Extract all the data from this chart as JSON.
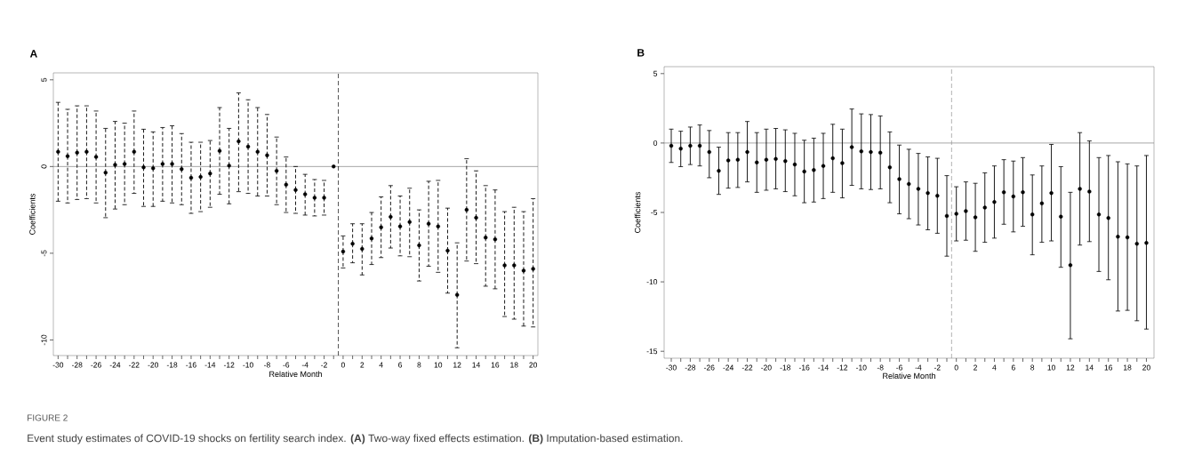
{
  "chart_data": [
    {
      "type": "scatter",
      "title": "A",
      "xlabel": "Relative Month",
      "ylabel": "Coefficients",
      "x": [
        -30,
        -29,
        -28,
        -27,
        -26,
        -25,
        -24,
        -23,
        -22,
        -21,
        -20,
        -19,
        -18,
        -17,
        -16,
        -15,
        -14,
        -13,
        -12,
        -11,
        -10,
        -9,
        -8,
        -7,
        -6,
        -5,
        -4,
        -3,
        -2,
        -1,
        0,
        1,
        2,
        3,
        4,
        5,
        6,
        7,
        8,
        9,
        10,
        11,
        12,
        13,
        14,
        15,
        16,
        17,
        18,
        19,
        20
      ],
      "marker": "circle",
      "line_style": "dashed",
      "series": [
        {
          "color": "#000000",
          "values": [
            0.85,
            0.6,
            0.8,
            0.85,
            0.55,
            -0.35,
            0.1,
            0.15,
            0.85,
            -0.05,
            -0.1,
            0.15,
            0.15,
            -0.15,
            -0.65,
            -0.6,
            -0.4,
            0.9,
            0.05,
            1.45,
            1.15,
            0.85,
            0.65,
            -0.25,
            -1.05,
            -1.35,
            -1.6,
            -1.8,
            -1.8,
            0,
            -4.9,
            -4.45,
            -4.75,
            -4.15,
            -3.5,
            -2.9,
            -3.45,
            -3.2,
            -4.55,
            -3.3,
            -3.45,
            -4.85,
            -7.4,
            -2.5,
            -2.95,
            -4.1,
            -4.2,
            -5.7,
            -5.7,
            -6.0,
            -5.9
          ],
          "errors": [
            [
              -2.0,
              3.7
            ],
            [
              -2.1,
              3.3
            ],
            [
              -1.9,
              3.5
            ],
            [
              -1.85,
              3.5
            ],
            [
              -2.1,
              3.2
            ],
            [
              -2.95,
              2.2
            ],
            [
              -2.45,
              2.6
            ],
            [
              -2.2,
              2.5
            ],
            [
              -1.55,
              3.2
            ],
            [
              -2.3,
              2.15
            ],
            [
              -2.3,
              2.0
            ],
            [
              -2.0,
              2.25
            ],
            [
              -2.1,
              2.35
            ],
            [
              -2.2,
              1.9
            ],
            [
              -2.7,
              1.4
            ],
            [
              -2.6,
              1.4
            ],
            [
              -2.35,
              1.5
            ],
            [
              -1.6,
              3.4
            ],
            [
              -2.15,
              2.2
            ],
            [
              -1.45,
              4.25
            ],
            [
              -1.55,
              3.85
            ],
            [
              -1.7,
              3.4
            ],
            [
              -1.7,
              3.0
            ],
            [
              -2.2,
              1.7
            ],
            [
              -2.65,
              0.55
            ],
            [
              -2.7,
              0.0
            ],
            [
              -2.8,
              -0.45
            ],
            [
              -2.85,
              -0.75
            ],
            [
              -2.8,
              -0.8
            ],
            null,
            [
              -5.85,
              -4.0
            ],
            [
              -5.55,
              -3.3
            ],
            [
              -6.25,
              -3.3
            ],
            [
              -5.65,
              -2.65
            ],
            [
              -5.25,
              -1.75
            ],
            [
              -4.7,
              -1.1
            ],
            [
              -5.15,
              -1.7
            ],
            [
              -5.2,
              -1.25
            ],
            [
              -6.6,
              -2.5
            ],
            [
              -5.75,
              -0.85
            ],
            [
              -6.1,
              -0.8
            ],
            [
              -7.3,
              -2.4
            ],
            [
              -10.45,
              -4.4
            ],
            [
              -5.45,
              0.45
            ],
            [
              -5.6,
              -0.25
            ],
            [
              -6.9,
              -1.1
            ],
            [
              -7.05,
              -1.35
            ],
            [
              -8.65,
              -2.6
            ],
            [
              -8.8,
              -2.35
            ],
            [
              -9.2,
              -2.6
            ],
            [
              -9.25,
              -1.85
            ]
          ]
        }
      ],
      "xlim": [
        -30.5,
        20.5
      ],
      "ylim": [
        -10.9,
        5.4
      ],
      "xticks": [
        -30,
        -28,
        -26,
        -24,
        -22,
        -20,
        -18,
        -16,
        -14,
        -12,
        -10,
        -8,
        -6,
        -4,
        -2,
        0,
        2,
        4,
        6,
        8,
        10,
        12,
        14,
        16,
        18,
        20
      ],
      "yticks": [
        -10,
        -5,
        0,
        5
      ],
      "ref_lines": [
        {
          "axis": "y",
          "value": 0,
          "color": "#808080",
          "line_style": "solid"
        },
        {
          "axis": "x",
          "value": -0.5,
          "color": "#000000",
          "line_style": "dashed"
        }
      ],
      "annotations": [
        "FIGURE 2",
        "Event study estimates of COVID-19 shocks on fertility search index. **(A)** Two-way fixed effects estimation. **(B)** Imputation-based estimation."
      ]
    },
    {
      "type": "scatter",
      "title": "B",
      "xlabel": "Relative Month",
      "ylabel": "Coefficients",
      "x": [
        -30,
        -29,
        -28,
        -27,
        -26,
        -25,
        -24,
        -23,
        -22,
        -21,
        -20,
        -19,
        -18,
        -17,
        -16,
        -15,
        -14,
        -13,
        -12,
        -11,
        -10,
        -9,
        -8,
        -7,
        -6,
        -5,
        -4,
        -3,
        -2,
        -1,
        0,
        1,
        2,
        3,
        4,
        5,
        6,
        7,
        8,
        9,
        10,
        11,
        12,
        13,
        14,
        15,
        16,
        17,
        18,
        19,
        20
      ],
      "marker": "circle",
      "line_style": "solid",
      "series": [
        {
          "color": "#000000",
          "values": [
            -0.2,
            -0.4,
            -0.2,
            -0.2,
            -0.65,
            -2.0,
            -1.25,
            -1.2,
            -0.65,
            -1.4,
            -1.2,
            -1.15,
            -1.3,
            -1.55,
            -2.05,
            -1.95,
            -1.65,
            -1.1,
            -1.45,
            -0.3,
            -0.6,
            -0.65,
            -0.7,
            -1.75,
            -2.6,
            -2.95,
            -3.3,
            -3.6,
            -3.8,
            -5.25,
            -5.1,
            -4.9,
            -5.35,
            -4.65,
            -4.25,
            -3.55,
            -3.85,
            -3.55,
            -5.15,
            -4.35,
            -3.6,
            -5.3,
            -8.8,
            -3.3,
            -3.5,
            -5.15,
            -5.4,
            -6.75,
            -6.8,
            -7.25,
            -7.2
          ],
          "errors": [
            [
              -1.4,
              1.0
            ],
            [
              -1.7,
              0.85
            ],
            [
              -1.55,
              1.15
            ],
            [
              -1.65,
              1.3
            ],
            [
              -2.5,
              0.9
            ],
            [
              -3.7,
              -0.3
            ],
            [
              -3.25,
              0.75
            ],
            [
              -3.2,
              0.75
            ],
            [
              -2.8,
              1.55
            ],
            [
              -3.55,
              0.75
            ],
            [
              -3.4,
              1.0
            ],
            [
              -3.3,
              1.05
            ],
            [
              -3.5,
              0.95
            ],
            [
              -3.8,
              0.7
            ],
            [
              -4.3,
              0.2
            ],
            [
              -4.25,
              0.35
            ],
            [
              -4.0,
              0.7
            ],
            [
              -3.55,
              1.35
            ],
            [
              -3.95,
              1.0
            ],
            [
              -3.05,
              2.45
            ],
            [
              -3.3,
              2.1
            ],
            [
              -3.35,
              2.05
            ],
            [
              -3.3,
              1.95
            ],
            [
              -4.3,
              0.8
            ],
            [
              -5.1,
              -0.15
            ],
            [
              -5.45,
              -0.45
            ],
            [
              -5.9,
              -0.75
            ],
            [
              -6.25,
              -1.0
            ],
            [
              -6.5,
              -1.1
            ],
            [
              -8.15,
              -2.35
            ],
            [
              -7.05,
              -3.15
            ],
            [
              -7.0,
              -2.8
            ],
            [
              -7.8,
              -2.9
            ],
            [
              -7.15,
              -2.15
            ],
            [
              -6.85,
              -1.65
            ],
            [
              -5.85,
              -1.2
            ],
            [
              -6.4,
              -1.3
            ],
            [
              -6.0,
              -1.05
            ],
            [
              -8.05,
              -2.3
            ],
            [
              -7.15,
              -1.65
            ],
            [
              -7.05,
              -0.1
            ],
            [
              -8.95,
              -1.7
            ],
            [
              -14.1,
              -3.55
            ],
            [
              -7.35,
              0.75
            ],
            [
              -7.1,
              0.15
            ],
            [
              -9.25,
              -1.05
            ],
            [
              -9.85,
              -0.9
            ],
            [
              -12.1,
              -1.35
            ],
            [
              -12.05,
              -1.5
            ],
            [
              -12.8,
              -1.65
            ],
            [
              -13.4,
              -0.9
            ]
          ]
        }
      ],
      "xlim": [
        -30.75,
        20.8
      ],
      "ylim": [
        -15.5,
        5.5
      ],
      "xticks": [
        -30,
        -28,
        -26,
        -24,
        -22,
        -20,
        -18,
        -16,
        -14,
        -12,
        -10,
        -8,
        -6,
        -4,
        -2,
        0,
        2,
        4,
        6,
        8,
        10,
        12,
        14,
        16,
        18,
        20
      ],
      "yticks": [
        -15,
        -10,
        -5,
        0,
        5
      ],
      "ref_lines": [
        {
          "axis": "y",
          "value": 0,
          "color": "#808080",
          "line_style": "solid"
        },
        {
          "axis": "x",
          "value": -0.5,
          "color": "#909090",
          "line_style": "dashed"
        }
      ]
    }
  ]
}
